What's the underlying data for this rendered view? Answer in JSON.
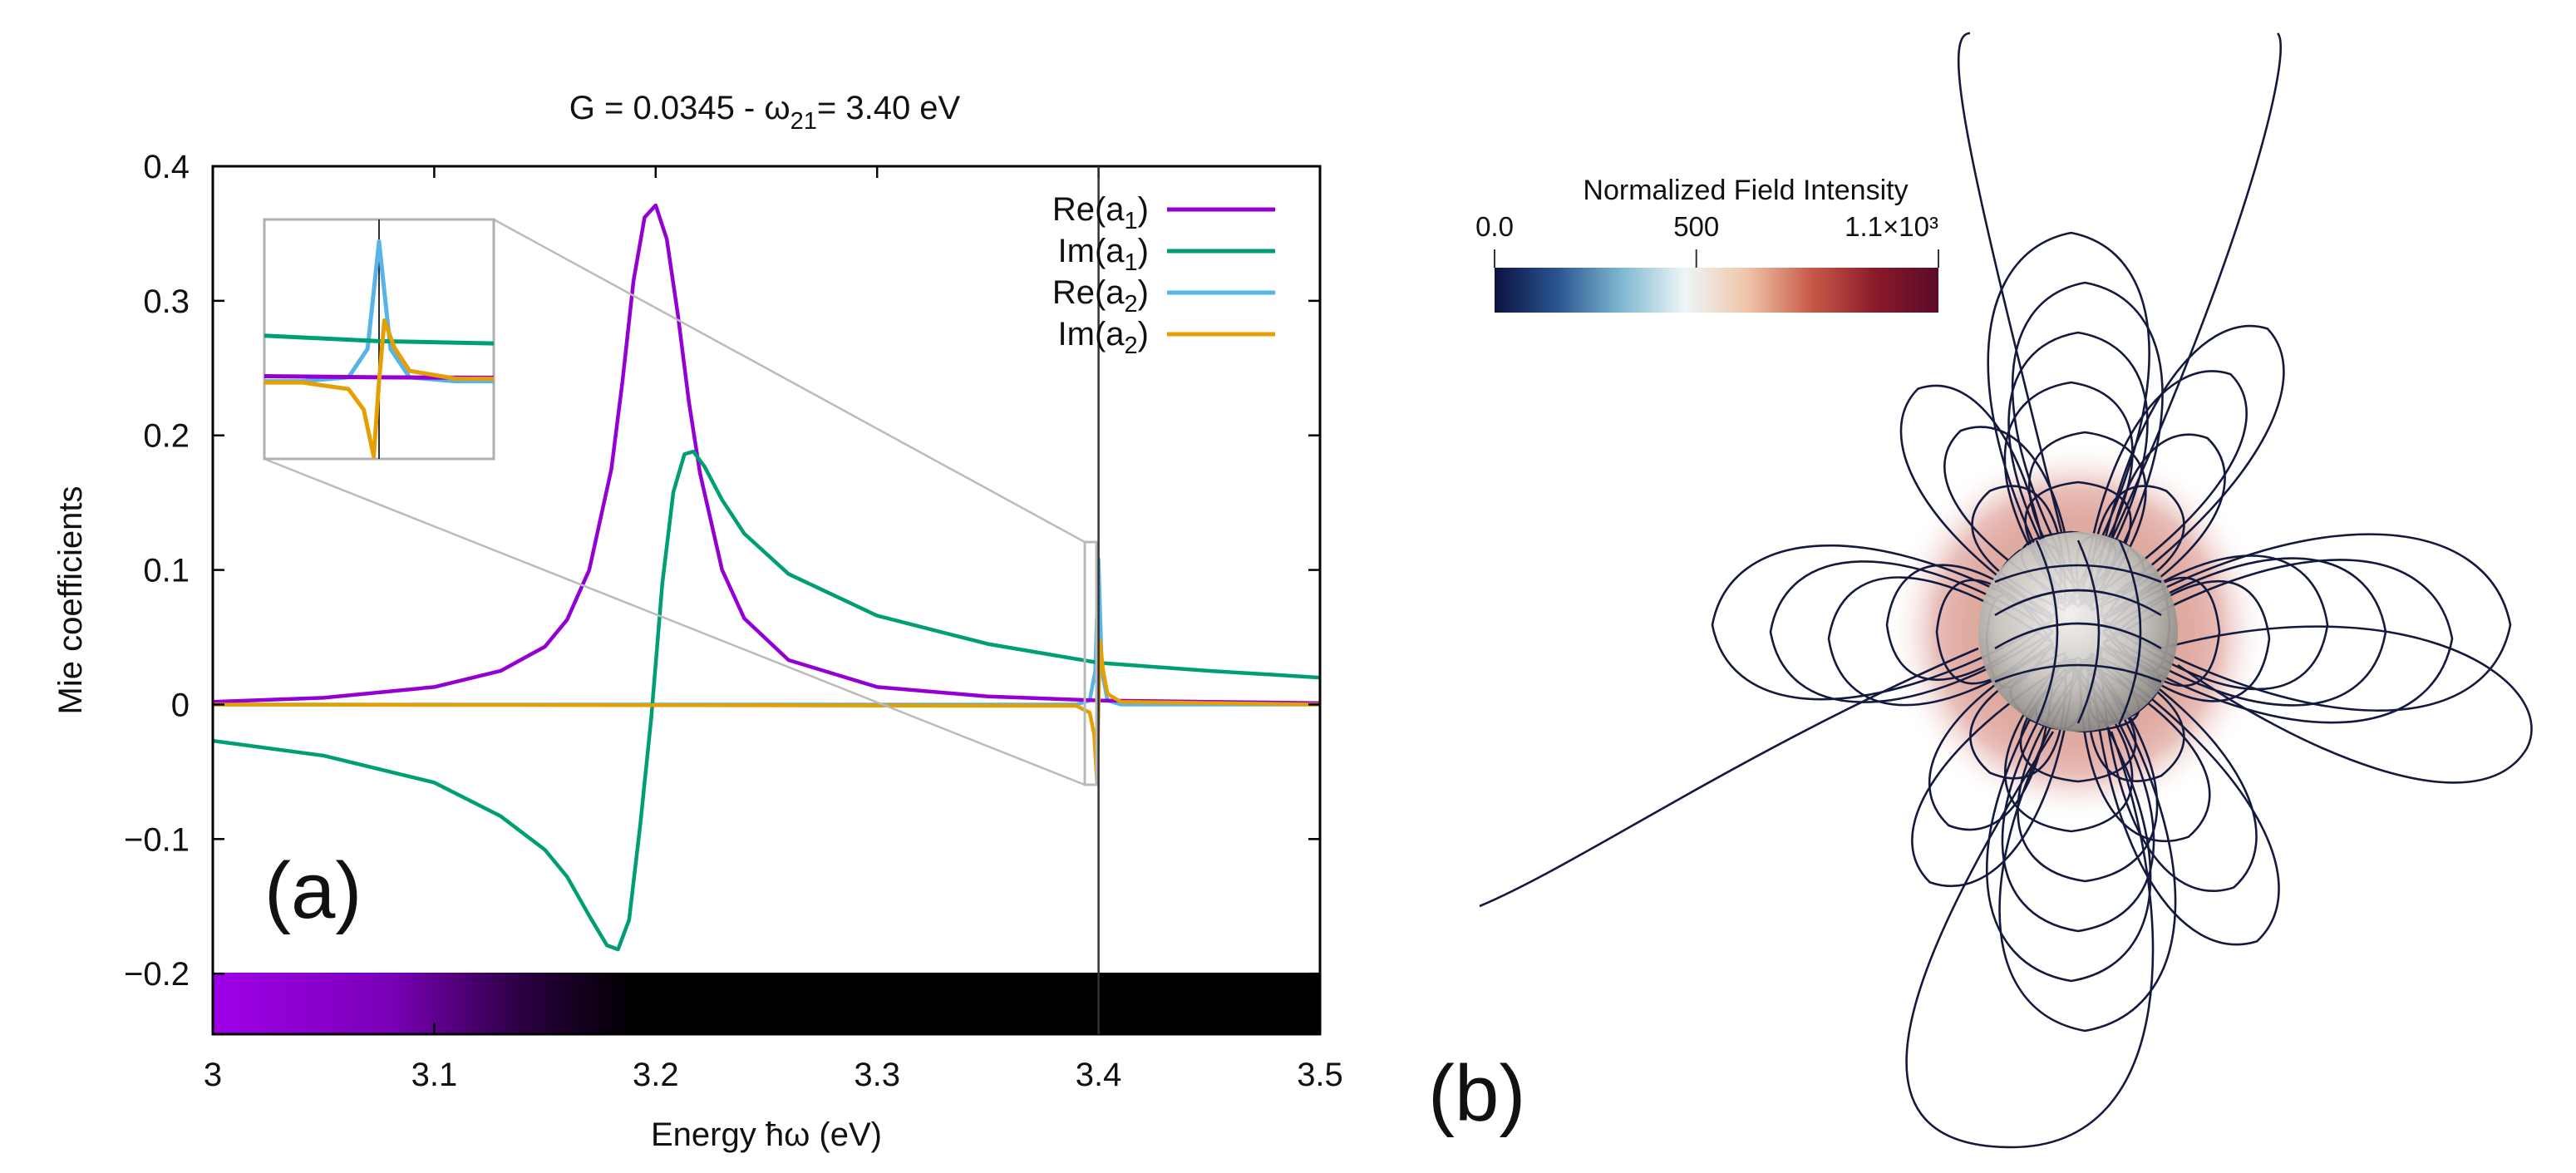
{
  "chart_data": [
    {
      "type": "line",
      "panel_label": "(a)",
      "title": {
        "prefix": "G = 0.0345    -    ω",
        "sub": "21",
        "suffix": "=  3.40 eV"
      },
      "xlabel": "Energy ħω  (eV)",
      "ylabel": "Mie coefficients",
      "xlim": [
        3.0,
        3.5
      ],
      "ylim": [
        -0.245,
        0.4
      ],
      "xticks": [
        3.0,
        3.1,
        3.2,
        3.3,
        3.4,
        3.5
      ],
      "xtick_labels": [
        "3",
        "3.1",
        "3.2",
        "3.3",
        "3.4",
        "3.5"
      ],
      "yticks": [
        -0.2,
        -0.1,
        0,
        0.1,
        0.2,
        0.3,
        0.4
      ],
      "ytick_labels": [
        "−0.2",
        "−0.1",
        "0",
        "0.1",
        "0.2",
        "0.3",
        "0.4"
      ],
      "vline_x": 3.4,
      "legend_position": "top-right",
      "grid": false,
      "series": [
        {
          "key": "re_a1",
          "name": "Re(a",
          "sub": "1",
          "color": "#9400d3",
          "x": [
            3.0,
            3.05,
            3.1,
            3.13,
            3.15,
            3.16,
            3.17,
            3.18,
            3.185,
            3.19,
            3.195,
            3.2,
            3.205,
            3.21,
            3.215,
            3.22,
            3.23,
            3.24,
            3.26,
            3.3,
            3.35,
            3.4,
            3.45,
            3.5
          ],
          "values": [
            0.002,
            0.005,
            0.013,
            0.025,
            0.043,
            0.063,
            0.1,
            0.175,
            0.24,
            0.315,
            0.362,
            0.371,
            0.346,
            0.29,
            0.225,
            0.172,
            0.1,
            0.064,
            0.033,
            0.013,
            0.006,
            0.003,
            0.002,
            0.001
          ]
        },
        {
          "key": "im_a1",
          "name": "Im(a",
          "sub": "1",
          "color": "#009e73",
          "x": [
            3.0,
            3.05,
            3.1,
            3.13,
            3.15,
            3.16,
            3.17,
            3.178,
            3.183,
            3.188,
            3.193,
            3.198,
            3.203,
            3.208,
            3.213,
            3.217,
            3.222,
            3.23,
            3.24,
            3.26,
            3.3,
            3.35,
            3.4,
            3.45,
            3.5
          ],
          "values": [
            -0.027,
            -0.038,
            -0.058,
            -0.083,
            -0.108,
            -0.128,
            -0.157,
            -0.179,
            -0.182,
            -0.16,
            -0.09,
            -0.01,
            0.09,
            0.158,
            0.186,
            0.188,
            0.177,
            0.152,
            0.127,
            0.097,
            0.066,
            0.045,
            0.031,
            0.025,
            0.02
          ]
        },
        {
          "key": "re_a2",
          "name": "Re(a",
          "sub": "2",
          "color": "#56b4e9",
          "x": [
            3.0,
            3.39,
            3.396,
            3.3985,
            3.3995,
            3.4,
            3.4005,
            3.4015,
            3.404,
            3.41,
            3.5
          ],
          "values": [
            0,
            0.0,
            0.003,
            0.025,
            0.08,
            0.108,
            0.08,
            0.025,
            0.003,
            0.0,
            0
          ]
        },
        {
          "key": "im_a2",
          "name": "Im(a",
          "sub": "2",
          "color": "#e69f00",
          "x": [
            3.0,
            3.39,
            3.396,
            3.398,
            3.3993,
            3.4,
            3.4007,
            3.402,
            3.404,
            3.41,
            3.5
          ],
          "values": [
            0,
            -0.001,
            -0.006,
            -0.022,
            -0.058,
            0.0,
            0.047,
            0.026,
            0.008,
            0.002,
            0
          ]
        }
      ],
      "inset": {
        "xlim": [
          3.385,
          3.415
        ],
        "ylim": [
          -0.06,
          0.125
        ]
      }
    },
    {
      "type": "heatmap",
      "panel_label": "(b)",
      "colorbar": {
        "title": "Normalized Field Intensity",
        "tick_labels": [
          "0.0",
          "500",
          "1.1×10³"
        ],
        "ticks": [
          0,
          500,
          1100
        ],
        "range": [
          0,
          1100
        ],
        "colors": [
          "#0c1240",
          "#2a5590",
          "#7fb8d0",
          "#eef6f8",
          "#f0c4a8",
          "#c85a48",
          "#8a1a2a",
          "#5a0a28"
        ]
      }
    }
  ]
}
